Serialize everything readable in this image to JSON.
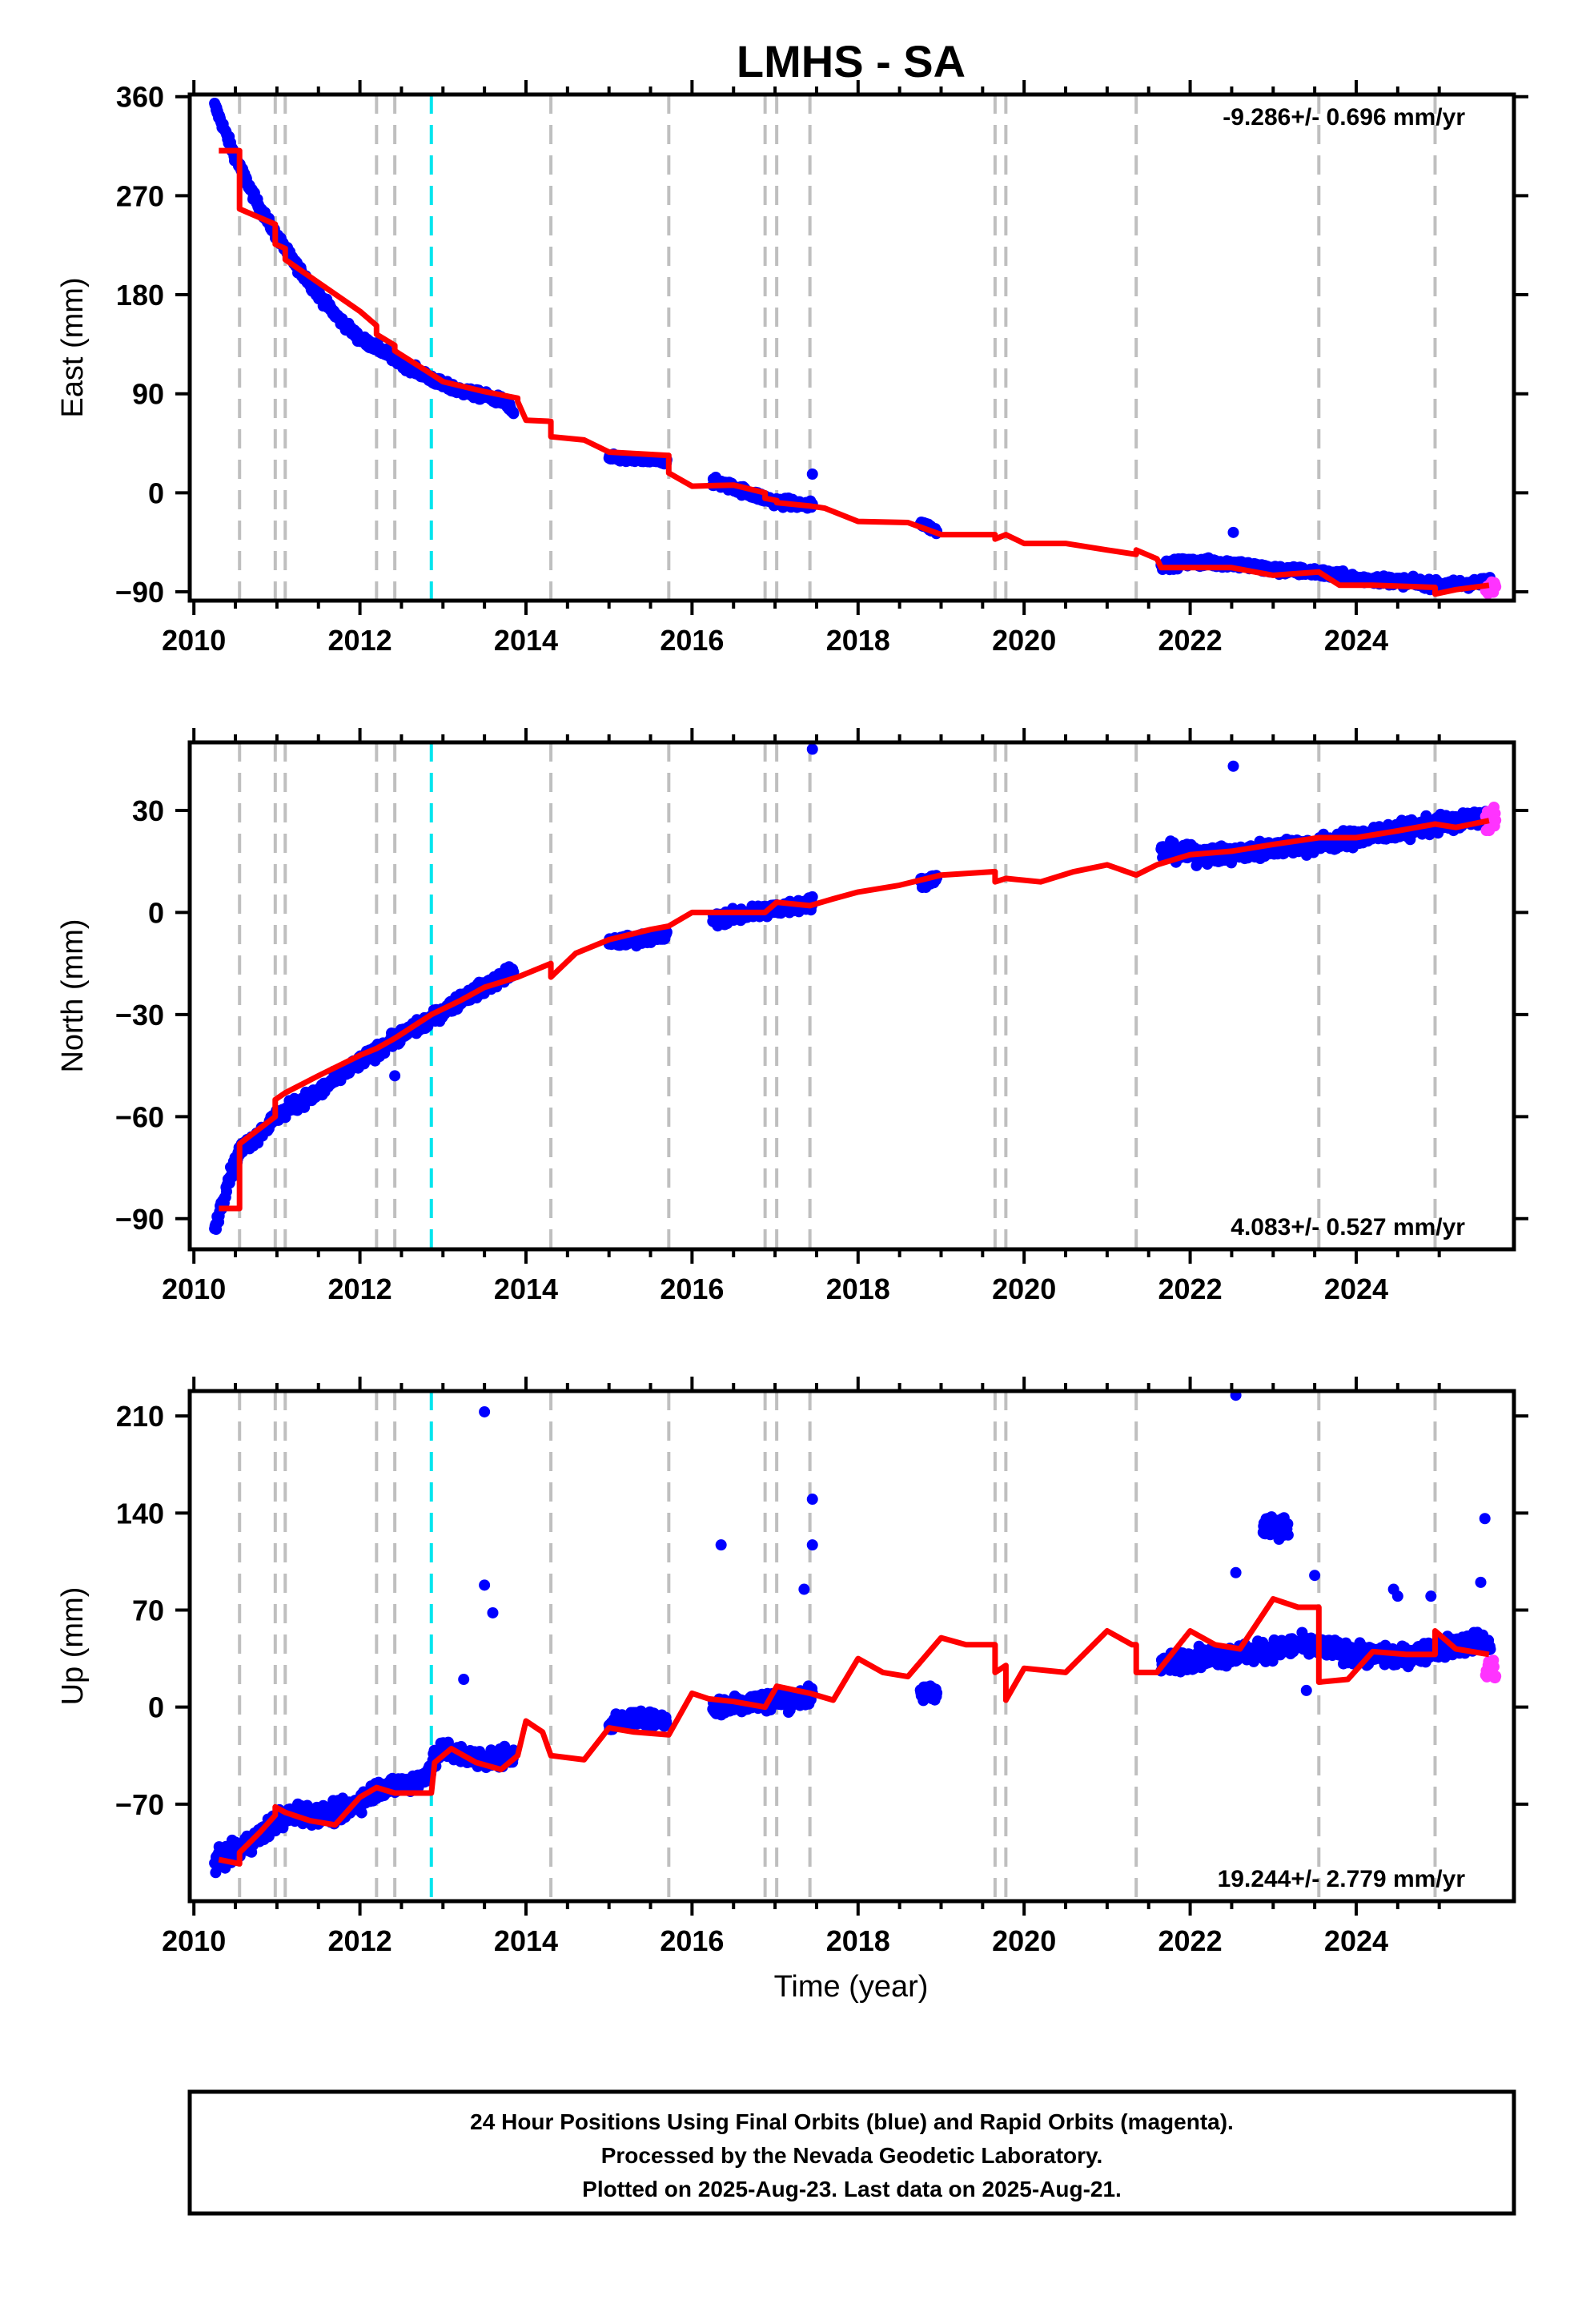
{
  "title": "LMHS - SA",
  "xlabel": "Time (year)",
  "footer": {
    "line1": "24 Hour Positions Using Final Orbits (blue) and Rapid Orbits (magenta).",
    "line2": "Processed by the Nevada Geodetic Laboratory.",
    "line3": "Plotted on 2025-Aug-23. Last data on 2025-Aug-21."
  },
  "colors": {
    "final": "#0000ff",
    "rapid": "#ff33ff",
    "model": "#ff0000",
    "steps": "#bfbfbf",
    "equipment": "#00e5ee"
  },
  "x_axis": {
    "range": [
      2009.95,
      2025.9
    ],
    "ticks": [
      2010,
      2012,
      2014,
      2016,
      2018,
      2020,
      2022,
      2024
    ]
  },
  "vertical_lines": {
    "gray_dashed": [
      2010.55,
      2010.98,
      2011.1,
      2012.2,
      2012.42,
      2014.3,
      2015.72,
      2016.88,
      2017.02,
      2017.42,
      2019.65,
      2019.78,
      2021.35,
      2023.55,
      2024.95
    ],
    "cyan_dashed": [
      2012.86
    ]
  },
  "chart_data": [
    {
      "type": "scatter",
      "name": "east",
      "ylabel": "East (mm)",
      "ylim": [
        -98,
        362
      ],
      "yticks": [
        -90,
        0,
        90,
        180,
        270,
        360
      ],
      "rate_text": "-9.286+/- 0.696 mm/yr",
      "rate_position": "top-right",
      "segments": [
        {
          "x": [
            2010.25,
            2010.5,
            2010.75,
            2011.0,
            2011.25,
            2011.5,
            2011.75,
            2012.0,
            2012.25,
            2012.5,
            2012.75,
            2013.0,
            2013.25,
            2013.5,
            2013.75,
            2013.85
          ],
          "y": [
            352,
            305,
            265,
            233,
            205,
            180,
            158,
            140,
            130,
            118,
            108,
            98,
            92,
            88,
            83,
            72
          ],
          "spread": 4
        },
        {
          "x": [
            2015.0,
            2015.3,
            2015.7
          ],
          "y": [
            32,
            30,
            29
          ],
          "spread": 3
        },
        {
          "x": [
            2016.25,
            2016.5,
            2016.75,
            2017.0,
            2017.25,
            2017.45
          ],
          "y": [
            10,
            5,
            -2,
            -8,
            -10,
            -12
          ],
          "spread": 4
        },
        {
          "x": [
            2018.75,
            2018.95
          ],
          "y": [
            -27,
            -35
          ],
          "spread": 3
        },
        {
          "x": [
            2021.65,
            2022.0,
            2022.5,
            2023.0,
            2023.5,
            2024.0,
            2024.5,
            2025.0,
            2025.5,
            2025.62
          ],
          "y": [
            -66,
            -63,
            -64,
            -70,
            -72,
            -78,
            -80,
            -84,
            -82,
            -80
          ],
          "spread": 4
        }
      ],
      "outliers": [
        {
          "x": 2017.45,
          "y": 17
        },
        {
          "x": 2022.52,
          "y": -36
        }
      ],
      "rapid": {
        "x": [
          2025.56,
          2025.68
        ],
        "y": [
          -92,
          -80
        ]
      },
      "model": [
        [
          2010.3,
          311
        ],
        [
          2010.55,
          311
        ],
        [
          2010.55,
          258
        ],
        [
          2010.98,
          244
        ],
        [
          2010.98,
          226
        ],
        [
          2011.1,
          222
        ],
        [
          2011.1,
          212
        ],
        [
          2011.5,
          191
        ],
        [
          2012.0,
          165
        ],
        [
          2012.2,
          152
        ],
        [
          2012.2,
          144
        ],
        [
          2012.42,
          134
        ],
        [
          2012.42,
          129
        ],
        [
          2012.86,
          108
        ],
        [
          2013.0,
          101
        ],
        [
          2013.5,
          92
        ],
        [
          2013.9,
          86
        ],
        [
          2013.9,
          83
        ],
        [
          2014.0,
          66
        ],
        [
          2014.3,
          65
        ],
        [
          2014.3,
          51
        ],
        [
          2014.7,
          48
        ],
        [
          2015.0,
          37
        ],
        [
          2015.7,
          34
        ],
        [
          2015.72,
          34
        ],
        [
          2015.72,
          18
        ],
        [
          2016.0,
          6
        ],
        [
          2016.5,
          7
        ],
        [
          2016.88,
          0
        ],
        [
          2016.88,
          -5
        ],
        [
          2017.02,
          -7
        ],
        [
          2017.02,
          -9
        ],
        [
          2017.42,
          -12
        ],
        [
          2017.6,
          -14
        ],
        [
          2018.0,
          -26
        ],
        [
          2018.6,
          -27
        ],
        [
          2019.0,
          -38
        ],
        [
          2019.65,
          -38
        ],
        [
          2019.65,
          -42
        ],
        [
          2019.78,
          -38
        ],
        [
          2020.0,
          -46
        ],
        [
          2020.5,
          -46
        ],
        [
          2021.0,
          -52
        ],
        [
          2021.35,
          -56
        ],
        [
          2021.35,
          -52
        ],
        [
          2021.6,
          -60
        ],
        [
          2021.65,
          -68
        ],
        [
          2022.0,
          -68
        ],
        [
          2022.5,
          -68
        ],
        [
          2023.0,
          -75
        ],
        [
          2023.55,
          -72
        ],
        [
          2023.8,
          -84
        ],
        [
          2024.2,
          -84
        ],
        [
          2024.95,
          -86
        ],
        [
          2024.95,
          -92
        ],
        [
          2025.2,
          -88
        ],
        [
          2025.6,
          -84
        ]
      ]
    },
    {
      "type": "scatter",
      "name": "north",
      "ylabel": "North (mm)",
      "ylim": [
        -99,
        50
      ],
      "yticks": [
        -90,
        -60,
        -30,
        0,
        30
      ],
      "rate_text": "4.083+/- 0.527 mm/yr",
      "rate_position": "bottom-right",
      "segments": [
        {
          "x": [
            2010.25,
            2010.4,
            2010.55,
            2010.75,
            2011.0,
            2011.25,
            2011.5,
            2011.75,
            2012.0,
            2012.25,
            2012.5,
            2012.75,
            2013.0,
            2013.25,
            2013.5,
            2013.85
          ],
          "y": [
            -93,
            -80,
            -70,
            -66,
            -60,
            -56,
            -53,
            -48,
            -44,
            -40,
            -36,
            -33,
            -29,
            -25,
            -22,
            -17
          ],
          "spread": 2
        },
        {
          "x": [
            2015.0,
            2015.3,
            2015.7
          ],
          "y": [
            -9,
            -8,
            -7
          ],
          "spread": 1.5
        },
        {
          "x": [
            2016.25,
            2016.5,
            2016.75,
            2017.0,
            2017.25,
            2017.45
          ],
          "y": [
            -2,
            -1,
            0,
            1,
            2,
            3
          ],
          "spread": 2
        },
        {
          "x": [
            2018.75,
            2018.95
          ],
          "y": [
            9,
            10
          ],
          "spread": 1.5
        },
        {
          "x": [
            2021.65,
            2022.0,
            2022.5,
            2023.0,
            2023.5,
            2024.0,
            2024.5,
            2025.0,
            2025.5,
            2025.62
          ],
          "y": [
            18,
            17,
            17,
            19,
            20,
            22,
            24,
            26,
            28,
            28
          ],
          "spread": 2.5
        }
      ],
      "outliers": [
        {
          "x": 2017.45,
          "y": 48
        },
        {
          "x": 2022.52,
          "y": 43
        },
        {
          "x": 2012.42,
          "y": -48
        }
      ],
      "rapid": {
        "x": [
          2025.56,
          2025.68
        ],
        "y": [
          24,
          31
        ]
      },
      "model": [
        [
          2010.3,
          -87
        ],
        [
          2010.55,
          -87
        ],
        [
          2010.55,
          -68
        ],
        [
          2010.98,
          -60
        ],
        [
          2010.98,
          -55
        ],
        [
          2011.1,
          -53
        ],
        [
          2011.5,
          -48
        ],
        [
          2012.0,
          -42
        ],
        [
          2012.2,
          -40
        ],
        [
          2012.42,
          -37
        ],
        [
          2012.86,
          -30
        ],
        [
          2013.2,
          -26
        ],
        [
          2013.5,
          -22
        ],
        [
          2013.9,
          -19
        ],
        [
          2014.3,
          -15
        ],
        [
          2014.3,
          -19
        ],
        [
          2014.6,
          -12
        ],
        [
          2015.0,
          -8
        ],
        [
          2015.5,
          -5
        ],
        [
          2015.72,
          -4
        ],
        [
          2016.0,
          0
        ],
        [
          2016.5,
          0
        ],
        [
          2016.88,
          0
        ],
        [
          2017.02,
          3
        ],
        [
          2017.42,
          2
        ],
        [
          2017.7,
          4
        ],
        [
          2018.0,
          6
        ],
        [
          2018.5,
          8
        ],
        [
          2019.0,
          11
        ],
        [
          2019.65,
          12
        ],
        [
          2019.65,
          9
        ],
        [
          2019.78,
          10
        ],
        [
          2020.2,
          9
        ],
        [
          2020.6,
          12
        ],
        [
          2021.0,
          14
        ],
        [
          2021.35,
          11
        ],
        [
          2021.6,
          14
        ],
        [
          2022.0,
          17
        ],
        [
          2022.5,
          18
        ],
        [
          2023.0,
          20
        ],
        [
          2023.55,
          22
        ],
        [
          2024.0,
          22
        ],
        [
          2024.5,
          24
        ],
        [
          2024.95,
          26
        ],
        [
          2025.2,
          25
        ],
        [
          2025.6,
          27
        ]
      ]
    },
    {
      "type": "scatter",
      "name": "up",
      "ylabel": "Up (mm)",
      "ylim": [
        -140,
        228
      ],
      "yticks": [
        -70,
        0,
        70,
        140,
        210
      ],
      "rate_text": "19.244+/- 2.779 mm/yr",
      "rate_position": "bottom-right",
      "segments": [
        {
          "x": [
            2010.25,
            2010.5,
            2010.75,
            2011.0,
            2011.25,
            2011.5,
            2011.75,
            2012.0,
            2012.25,
            2012.5,
            2012.75,
            2013.0,
            2013.25,
            2013.5,
            2013.85
          ],
          "y": [
            -112,
            -105,
            -95,
            -82,
            -76,
            -78,
            -76,
            -68,
            -58,
            -56,
            -52,
            -30,
            -35,
            -38,
            -35
          ],
          "spread": 7
        },
        {
          "x": [
            2015.0,
            2015.3,
            2015.7
          ],
          "y": [
            -12,
            -8,
            -10
          ],
          "spread": 5
        },
        {
          "x": [
            2016.25,
            2016.5,
            2016.75,
            2017.0,
            2017.25,
            2017.45
          ],
          "y": [
            0,
            2,
            4,
            5,
            6,
            8
          ],
          "spread": 7
        },
        {
          "x": [
            2018.75,
            2018.95
          ],
          "y": [
            10,
            12
          ],
          "spread": 6
        },
        {
          "x": [
            2021.65,
            2022.0,
            2022.5,
            2022.9,
            2023.3,
            2023.7,
            2024.0,
            2024.5,
            2025.0,
            2025.5,
            2025.62
          ],
          "y": [
            30,
            35,
            38,
            40,
            45,
            42,
            38,
            36,
            42,
            48,
            40
          ],
          "spread": 7
        }
      ],
      "clusters": [
        {
          "x": [
            2022.88,
            2023.18
          ],
          "y": [
            130,
            130
          ],
          "spread": 7
        }
      ],
      "outliers": [
        {
          "x": 2013.5,
          "y": 213
        },
        {
          "x": 2013.5,
          "y": 88
        },
        {
          "x": 2013.6,
          "y": 68
        },
        {
          "x": 2013.25,
          "y": 20
        },
        {
          "x": 2016.35,
          "y": 117
        },
        {
          "x": 2017.45,
          "y": 150
        },
        {
          "x": 2017.45,
          "y": 117
        },
        {
          "x": 2017.35,
          "y": 85
        },
        {
          "x": 2022.55,
          "y": 225
        },
        {
          "x": 2022.55,
          "y": 97
        },
        {
          "x": 2023.5,
          "y": 95
        },
        {
          "x": 2024.5,
          "y": 80
        },
        {
          "x": 2024.45,
          "y": 85
        },
        {
          "x": 2024.9,
          "y": 80
        },
        {
          "x": 2025.55,
          "y": 136
        },
        {
          "x": 2025.5,
          "y": 90
        },
        {
          "x": 2023.4,
          "y": 12
        }
      ],
      "rapid": {
        "x": [
          2025.56,
          2025.68
        ],
        "y": [
          20,
          34
        ]
      },
      "model": [
        [
          2010.3,
          -110
        ],
        [
          2010.55,
          -113
        ],
        [
          2010.55,
          -105
        ],
        [
          2010.8,
          -90
        ],
        [
          2010.98,
          -78
        ],
        [
          2010.98,
          -72
        ],
        [
          2011.1,
          -76
        ],
        [
          2011.4,
          -82
        ],
        [
          2011.7,
          -85
        ],
        [
          2012.0,
          -65
        ],
        [
          2012.2,
          -58
        ],
        [
          2012.42,
          -62
        ],
        [
          2012.86,
          -62
        ],
        [
          2012.9,
          -40
        ],
        [
          2013.1,
          -30
        ],
        [
          2013.4,
          -40
        ],
        [
          2013.7,
          -45
        ],
        [
          2013.9,
          -35
        ],
        [
          2014.0,
          -10
        ],
        [
          2014.2,
          -18
        ],
        [
          2014.3,
          -35
        ],
        [
          2014.7,
          -38
        ],
        [
          2015.0,
          -15
        ],
        [
          2015.3,
          -18
        ],
        [
          2015.72,
          -20
        ],
        [
          2016.0,
          10
        ],
        [
          2016.2,
          6
        ],
        [
          2016.5,
          4
        ],
        [
          2016.88,
          0
        ],
        [
          2017.02,
          15
        ],
        [
          2017.42,
          10
        ],
        [
          2017.7,
          5
        ],
        [
          2018.0,
          35
        ],
        [
          2018.3,
          25
        ],
        [
          2018.6,
          22
        ],
        [
          2019.0,
          50
        ],
        [
          2019.3,
          45
        ],
        [
          2019.65,
          45
        ],
        [
          2019.65,
          25
        ],
        [
          2019.78,
          30
        ],
        [
          2019.78,
          5
        ],
        [
          2020.0,
          28
        ],
        [
          2020.5,
          25
        ],
        [
          2021.0,
          55
        ],
        [
          2021.3,
          45
        ],
        [
          2021.35,
          45
        ],
        [
          2021.35,
          25
        ],
        [
          2021.6,
          25
        ],
        [
          2022.0,
          55
        ],
        [
          2022.3,
          45
        ],
        [
          2022.6,
          42
        ],
        [
          2023.0,
          78
        ],
        [
          2023.3,
          72
        ],
        [
          2023.55,
          72
        ],
        [
          2023.55,
          18
        ],
        [
          2023.9,
          20
        ],
        [
          2024.2,
          40
        ],
        [
          2024.6,
          38
        ],
        [
          2024.95,
          38
        ],
        [
          2024.95,
          55
        ],
        [
          2025.2,
          42
        ],
        [
          2025.6,
          38
        ]
      ]
    }
  ]
}
